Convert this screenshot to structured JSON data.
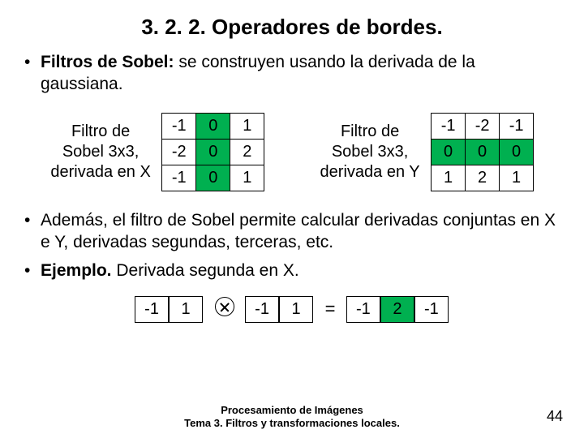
{
  "title": "3. 2. 2. Operadores de bordes.",
  "bullet1_bold": "Filtros de Sobel:",
  "bullet1_rest": " se construyen usando la derivada de la gaussiana.",
  "filterX": {
    "label_l1": "Filtro de",
    "label_l2": "Sobel 3x3,",
    "label_l3": "derivada en X",
    "cells": [
      "-1",
      "0",
      "1",
      "-2",
      "0",
      "2",
      "-1",
      "0",
      "1"
    ],
    "green_indices": [
      1,
      4,
      7
    ],
    "cols": 3
  },
  "filterY": {
    "label_l1": "Filtro de",
    "label_l2": "Sobel 3x3,",
    "label_l3": "derivada en Y",
    "cells": [
      "-1",
      "-2",
      "-1",
      "0",
      "0",
      "0",
      "1",
      "2",
      "1"
    ],
    "green_indices": [
      3,
      4,
      5
    ],
    "cols": 3
  },
  "bullet2": "Además, el filtro de Sobel permite calcular derivadas conjuntas en X e Y, derivadas segundas, terceras, etc.",
  "bullet3_bold": "Ejemplo.",
  "bullet3_rest": " Derivada segunda en X.",
  "example": {
    "a": {
      "cells": [
        "-1",
        "1"
      ],
      "green_indices": [],
      "cols": 2
    },
    "b": {
      "cells": [
        "-1",
        "1"
      ],
      "green_indices": [],
      "cols": 2
    },
    "eq": "=",
    "c": {
      "cells": [
        "-1",
        "2",
        "-1"
      ],
      "green_indices": [
        1
      ],
      "cols": 3
    }
  },
  "footer_l1": "Procesamiento de Imágenes",
  "footer_l2": "Tema 3. Filtros y transformaciones locales.",
  "page": "44",
  "colors": {
    "green": "#00b050",
    "text": "#000000",
    "bg": "#ffffff"
  }
}
